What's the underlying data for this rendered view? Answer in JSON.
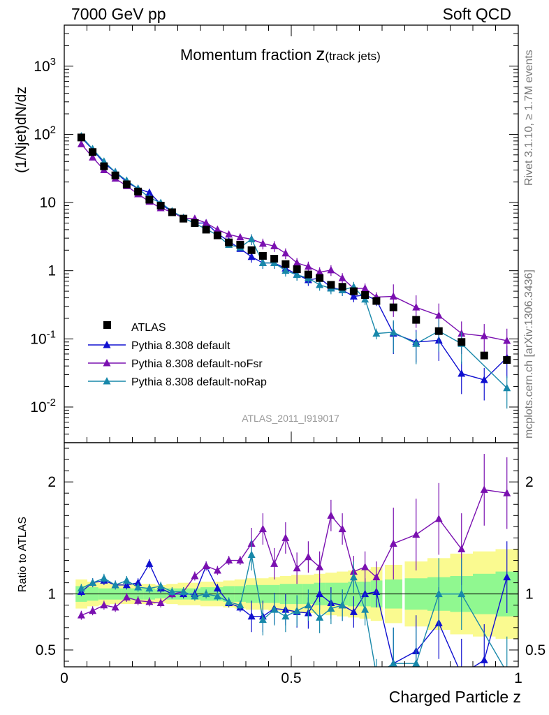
{
  "header": {
    "left": "7000 GeV pp",
    "right": "Soft QCD"
  },
  "side_labels": {
    "rivet": "Rivet 3.1.10, ≥ 1.7M events",
    "mcplots": "mcplots.cern.ch [arXiv:1306.3436]"
  },
  "plot": {
    "title_main": "Momentum fraction ",
    "title_z": "z",
    "title_sub": "(track jets)",
    "watermark": "ATLAS_2011_I919017"
  },
  "colors": {
    "atlas": "#000000",
    "default": "#1010d0",
    "noFsr": "#7a10b0",
    "noRap": "#1888aa",
    "band_inner": "#90f890",
    "band_outer": "#fafa90"
  },
  "chart_data": [
    {
      "type": "scatter",
      "title": "Momentum fraction z(track jets)",
      "ylabel": "(1/Njet)dN/dz",
      "yscale": "log",
      "ylim": [
        0.003,
        4000
      ],
      "xlim": [
        0,
        1
      ],
      "yticks": [
        {
          "label": "10",
          "sup": "-2"
        },
        {
          "label": "10",
          "sup": "-1"
        },
        {
          "label": "1",
          "sup": ""
        },
        {
          "label": "10",
          "sup": ""
        },
        {
          "label": "10",
          "sup": "2"
        },
        {
          "label": "10",
          "sup": "3"
        }
      ],
      "legend_position": "bottom-left",
      "x": [
        0.0375,
        0.0625,
        0.0875,
        0.1125,
        0.1375,
        0.1625,
        0.1875,
        0.2125,
        0.2375,
        0.2625,
        0.2875,
        0.3125,
        0.3375,
        0.3625,
        0.3875,
        0.4125,
        0.4375,
        0.4625,
        0.4875,
        0.5125,
        0.5375,
        0.5625,
        0.5875,
        0.6125,
        0.6375,
        0.6625,
        0.6875,
        0.725,
        0.775,
        0.825,
        0.875,
        0.925,
        0.975
      ],
      "series": [
        {
          "name": "ATLAS",
          "marker": "square",
          "values": [
            90,
            55,
            34,
            25,
            18.5,
            14.5,
            11,
            9,
            7.2,
            5.8,
            5,
            4,
            3.3,
            2.6,
            2.4,
            2.0,
            1.65,
            1.5,
            1.25,
            1.05,
            0.88,
            0.78,
            0.62,
            0.58,
            0.5,
            0.44,
            0.36,
            0.29,
            0.19,
            0.13,
            0.09,
            0.057,
            0.049
          ]
        },
        {
          "name": "Pythia 8.308 default",
          "marker": "triangle",
          "values": [
            90,
            60,
            38,
            28,
            20,
            16,
            14,
            9.5,
            7.3,
            5.9,
            5.0,
            5.0,
            3.5,
            2.7,
            2.1,
            1.6,
            1.3,
            1.3,
            1.08,
            0.88,
            0.73,
            0.78,
            0.57,
            0.52,
            0.42,
            0.44,
            0.37,
            0.12,
            0.09,
            0.095,
            0.031,
            0.025,
            0.053
          ]
        },
        {
          "name": "Pythia 8.308 default-noFsr",
          "marker": "triangle",
          "values": [
            72,
            46,
            30,
            22.5,
            17.5,
            13.3,
            10.3,
            8.3,
            7.2,
            5.9,
            5.8,
            5.0,
            4.0,
            3.4,
            3.1,
            2.9,
            2.5,
            2.3,
            1.8,
            1.3,
            1.15,
            0.95,
            1.02,
            0.78,
            0.55,
            0.55,
            0.41,
            0.42,
            0.29,
            0.22,
            0.12,
            0.11,
            0.094
          ]
        },
        {
          "name": "Pythia 8.308 default-noRap",
          "marker": "triangle",
          "values": [
            94,
            61,
            40,
            28,
            21,
            16,
            11.8,
            9.9,
            7.5,
            6.0,
            4.9,
            4.1,
            3.3,
            2.4,
            2.2,
            2.9,
            1.3,
            1.3,
            1.0,
            0.87,
            0.78,
            0.62,
            0.55,
            0.52,
            0.58,
            0.38,
            0.12,
            0.125,
            0.085,
            0.13,
            0.085,
            null,
            0.019
          ]
        }
      ]
    },
    {
      "type": "scatter",
      "ylabel": "Ratio to ATLAS",
      "xlabel": "Charged Particle z",
      "ylim": [
        0.35,
        2.35
      ],
      "xlim": [
        0,
        1
      ],
      "xticks": [
        "0",
        "0.5",
        "1"
      ],
      "yticks": [
        "0.5",
        "1",
        "2"
      ],
      "x": [
        0.0375,
        0.0625,
        0.0875,
        0.1125,
        0.1375,
        0.1625,
        0.1875,
        0.2125,
        0.2375,
        0.2625,
        0.2875,
        0.3125,
        0.3375,
        0.3625,
        0.3875,
        0.4125,
        0.4375,
        0.4625,
        0.4875,
        0.5125,
        0.5375,
        0.5625,
        0.5875,
        0.6125,
        0.6375,
        0.6625,
        0.6875,
        0.725,
        0.775,
        0.825,
        0.875,
        0.925,
        0.975
      ],
      "band_half_inner": [
        0.07,
        0.06,
        0.05,
        0.05,
        0.05,
        0.05,
        0.05,
        0.04,
        0.05,
        0.05,
        0.05,
        0.06,
        0.06,
        0.07,
        0.07,
        0.08,
        0.08,
        0.08,
        0.09,
        0.09,
        0.09,
        0.1,
        0.1,
        0.1,
        0.11,
        0.11,
        0.12,
        0.13,
        0.14,
        0.15,
        0.16,
        0.18,
        0.2
      ],
      "band_half_outer": [
        0.13,
        0.11,
        0.1,
        0.09,
        0.09,
        0.09,
        0.09,
        0.08,
        0.09,
        0.1,
        0.1,
        0.11,
        0.11,
        0.12,
        0.13,
        0.14,
        0.14,
        0.15,
        0.16,
        0.17,
        0.17,
        0.18,
        0.19,
        0.2,
        0.21,
        0.22,
        0.24,
        0.26,
        0.29,
        0.32,
        0.36,
        0.38,
        0.4
      ],
      "series": [
        {
          "name": "Pythia 8.308 default",
          "values": [
            1.02,
            1.1,
            1.12,
            1.08,
            1.08,
            1.1,
            1.27,
            1.05,
            1.0,
            1.0,
            1.0,
            1.25,
            1.05,
            0.92,
            0.88,
            0.8,
            0.8,
            0.87,
            0.86,
            0.84,
            0.83,
            1.0,
            0.92,
            0.9,
            0.84,
            1.0,
            1.02,
            0.38,
            0.49,
            0.74,
            0.28,
            0.41,
            1.15
          ]
        },
        {
          "name": "Pythia 8.308 default-noFsr",
          "values": [
            0.81,
            0.85,
            0.9,
            0.88,
            0.97,
            0.94,
            0.93,
            0.92,
            1.0,
            1.02,
            1.16,
            1.25,
            1.21,
            1.3,
            1.3,
            1.45,
            1.58,
            1.27,
            1.5,
            1.23,
            1.33,
            1.24,
            1.7,
            1.58,
            1.2,
            1.24,
            1.15,
            1.45,
            1.53,
            1.67,
            1.4,
            1.93,
            1.9
          ]
        },
        {
          "name": "Pythia 8.308 default-noRap",
          "values": [
            1.05,
            1.1,
            1.14,
            1.08,
            1.12,
            1.06,
            1.05,
            1.07,
            1.02,
            1.02,
            0.98,
            1.0,
            0.98,
            0.93,
            0.9,
            1.35,
            0.77,
            0.86,
            0.8,
            0.85,
            0.9,
            0.79,
            0.87,
            0.9,
            1.15,
            0.86,
            0.28,
            0.38,
            0.38,
            1.0,
            1.0,
            null,
            0.3
          ]
        }
      ]
    }
  ]
}
